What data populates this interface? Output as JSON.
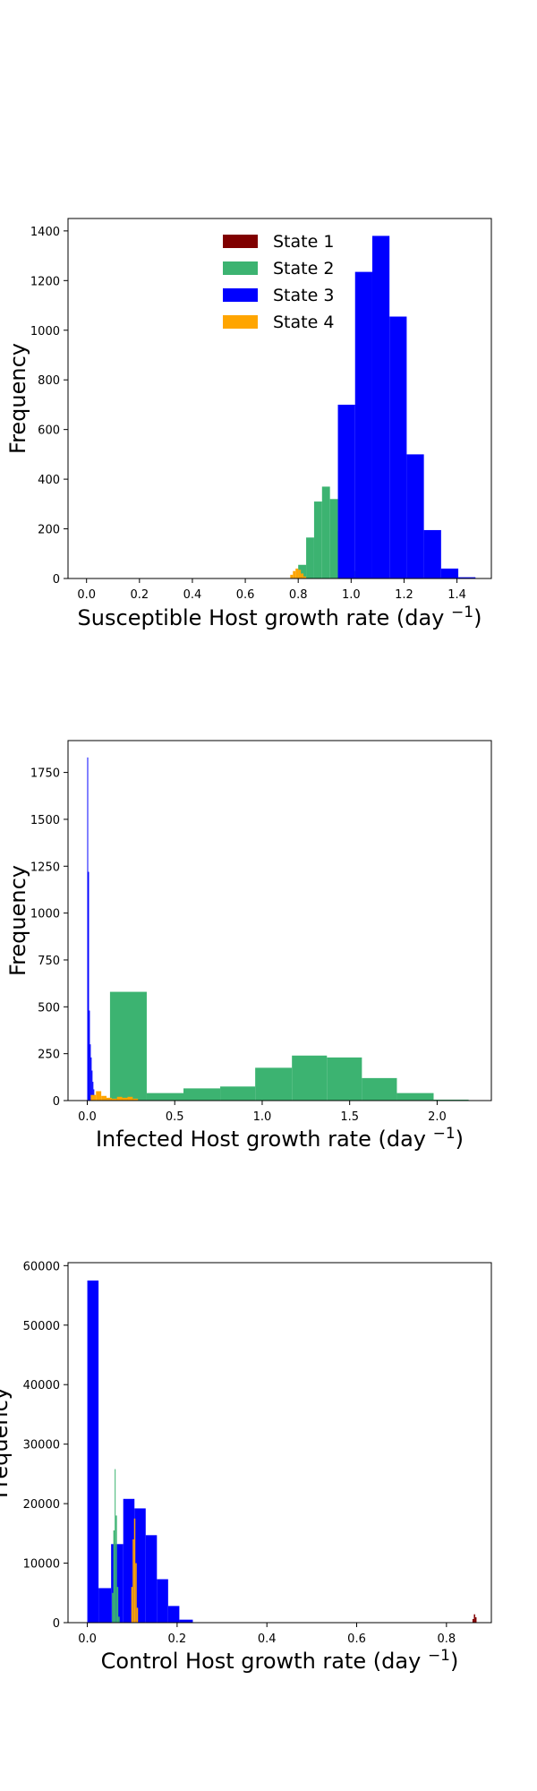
{
  "series_styles": [
    {
      "name": "State 1",
      "color": "#800000"
    },
    {
      "name": "State 2",
      "color": "#3cb371"
    },
    {
      "name": "State 3",
      "color": "#0000ff"
    },
    {
      "name": "State 4",
      "color": "#ffa500"
    }
  ],
  "chart_data": [
    {
      "type": "bar",
      "histogram": true,
      "title": "",
      "xlabel": "Susceptible Host growth rate (day ",
      "xlabel_sup": "−1",
      "xlabel_end": ")",
      "ylabel": "Frequency",
      "xlim": [
        -0.07,
        1.53
      ],
      "ylim": [
        0,
        1450
      ],
      "xticks": [
        0.0,
        0.2,
        0.4,
        0.6,
        0.8,
        1.0,
        1.2,
        1.4
      ],
      "xtick_labels": [
        "0.0",
        "0.2",
        "0.4",
        "0.6",
        "0.8",
        "1.0",
        "1.2",
        "1.4"
      ],
      "yticks": [
        0,
        200,
        400,
        600,
        800,
        1000,
        1200,
        1400
      ],
      "ytick_labels": [
        "0",
        "200",
        "400",
        "600",
        "800",
        "1000",
        "1200",
        "1400"
      ],
      "legend": {
        "position": "top-center",
        "entries": [
          "State 1",
          "State 2",
          "State 3",
          "State 4"
        ]
      },
      "series": [
        {
          "name": "State 2",
          "bins": [
            [
              0.8,
              0.83,
              55
            ],
            [
              0.83,
              0.86,
              165
            ],
            [
              0.86,
              0.89,
              310
            ],
            [
              0.89,
              0.92,
              370
            ],
            [
              0.92,
              0.95,
              320
            ],
            [
              0.95,
              0.98,
              190
            ],
            [
              0.98,
              1.01,
              85
            ],
            [
              1.01,
              1.04,
              30
            ],
            [
              1.04,
              1.07,
              10
            ]
          ]
        },
        {
          "name": "State 3",
          "bins": [
            [
              0.95,
              1.015,
              700
            ],
            [
              1.015,
              1.08,
              1235
            ],
            [
              1.08,
              1.145,
              1380
            ],
            [
              1.145,
              1.21,
              1055
            ],
            [
              1.21,
              1.275,
              500
            ],
            [
              1.275,
              1.34,
              195
            ],
            [
              1.34,
              1.405,
              40
            ],
            [
              1.405,
              1.47,
              5
            ]
          ]
        },
        {
          "name": "State 4",
          "bins": [
            [
              0.77,
              0.78,
              15
            ],
            [
              0.78,
              0.79,
              30
            ],
            [
              0.79,
              0.8,
              40
            ],
            [
              0.8,
              0.81,
              35
            ],
            [
              0.81,
              0.82,
              20
            ],
            [
              0.82,
              0.83,
              8
            ]
          ]
        }
      ]
    },
    {
      "type": "bar",
      "histogram": true,
      "title": "",
      "xlabel": "Infected Host growth rate (day ",
      "xlabel_sup": "−1",
      "xlabel_end": ")",
      "ylabel": "Frequency",
      "xlim": [
        -0.11,
        2.31
      ],
      "ylim": [
        0,
        1920
      ],
      "xticks": [
        0.0,
        0.5,
        1.0,
        1.5,
        2.0
      ],
      "xtick_labels": [
        "0.0",
        "0.5",
        "1.0",
        "1.5",
        "2.0"
      ],
      "yticks": [
        0,
        250,
        500,
        750,
        1000,
        1250,
        1500,
        1750
      ],
      "ytick_labels": [
        "0",
        "250",
        "500",
        "750",
        "1000",
        "1250",
        "1500",
        "1750"
      ],
      "legend": null,
      "series": [
        {
          "name": "State 2",
          "bins": [
            [
              0.0,
              0.13,
              0
            ],
            [
              0.13,
              0.34,
              580
            ],
            [
              0.34,
              0.55,
              40
            ],
            [
              0.55,
              0.76,
              65
            ],
            [
              0.76,
              0.96,
              75
            ],
            [
              0.96,
              1.17,
              175
            ],
            [
              1.17,
              1.37,
              240
            ],
            [
              1.37,
              1.57,
              230
            ],
            [
              1.57,
              1.77,
              120
            ],
            [
              1.77,
              1.98,
              40
            ],
            [
              1.98,
              2.18,
              5
            ]
          ]
        },
        {
          "name": "State 3",
          "bins": [
            [
              0.0,
              0.005,
              1830
            ],
            [
              0.005,
              0.01,
              1220
            ],
            [
              0.01,
              0.015,
              480
            ],
            [
              0.015,
              0.02,
              300
            ],
            [
              0.02,
              0.025,
              230
            ],
            [
              0.025,
              0.03,
              160
            ],
            [
              0.03,
              0.035,
              100
            ],
            [
              0.035,
              0.04,
              60
            ],
            [
              0.04,
              0.045,
              30
            ]
          ]
        },
        {
          "name": "State 4",
          "bins": [
            [
              0.02,
              0.05,
              30
            ],
            [
              0.05,
              0.08,
              50
            ],
            [
              0.08,
              0.11,
              25
            ],
            [
              0.11,
              0.14,
              15
            ],
            [
              0.14,
              0.17,
              10
            ],
            [
              0.17,
              0.2,
              20
            ],
            [
              0.2,
              0.23,
              15
            ],
            [
              0.23,
              0.26,
              20
            ],
            [
              0.26,
              0.29,
              10
            ]
          ]
        }
      ]
    },
    {
      "type": "bar",
      "histogram": true,
      "title": "",
      "xlabel": "Control Host growth rate (day ",
      "xlabel_sup": "−1",
      "xlabel_end": ")",
      "ylabel": "Frequency",
      "xlim": [
        -0.043,
        0.9
      ],
      "ylim": [
        0,
        60500
      ],
      "xticks": [
        0.0,
        0.2,
        0.4,
        0.6,
        0.8
      ],
      "xtick_labels": [
        "0.0",
        "0.2",
        "0.4",
        "0.6",
        "0.8"
      ],
      "yticks": [
        0,
        10000,
        20000,
        30000,
        40000,
        50000,
        60000
      ],
      "ytick_labels": [
        "0",
        "10000",
        "20000",
        "30000",
        "40000",
        "50000",
        "60000"
      ],
      "legend": null,
      "series": [
        {
          "name": "State 3",
          "bins": [
            [
              0.0,
              0.025,
              57500
            ],
            [
              0.025,
              0.053,
              5800
            ],
            [
              0.053,
              0.08,
              13200
            ],
            [
              0.08,
              0.105,
              20800
            ],
            [
              0.105,
              0.13,
              19200
            ],
            [
              0.13,
              0.155,
              14700
            ],
            [
              0.155,
              0.18,
              7300
            ],
            [
              0.18,
              0.205,
              2800
            ],
            [
              0.205,
              0.235,
              500
            ]
          ]
        },
        {
          "name": "State 2",
          "bins": [
            [
              0.055,
              0.058,
              5000
            ],
            [
              0.058,
              0.061,
              15500
            ],
            [
              0.061,
              0.063,
              25800
            ],
            [
              0.063,
              0.066,
              18000
            ],
            [
              0.066,
              0.069,
              6000
            ],
            [
              0.069,
              0.072,
              1000
            ]
          ]
        },
        {
          "name": "State 4",
          "bins": [
            [
              0.098,
              0.101,
              6000
            ],
            [
              0.101,
              0.104,
              14000
            ],
            [
              0.104,
              0.107,
              17500
            ],
            [
              0.107,
              0.11,
              10000
            ],
            [
              0.11,
              0.113,
              2500
            ]
          ]
        },
        {
          "name": "State 1",
          "bins": [
            [
              0.858,
              0.861,
              600
            ],
            [
              0.861,
              0.864,
              1400
            ],
            [
              0.864,
              0.867,
              900
            ]
          ]
        }
      ]
    }
  ]
}
